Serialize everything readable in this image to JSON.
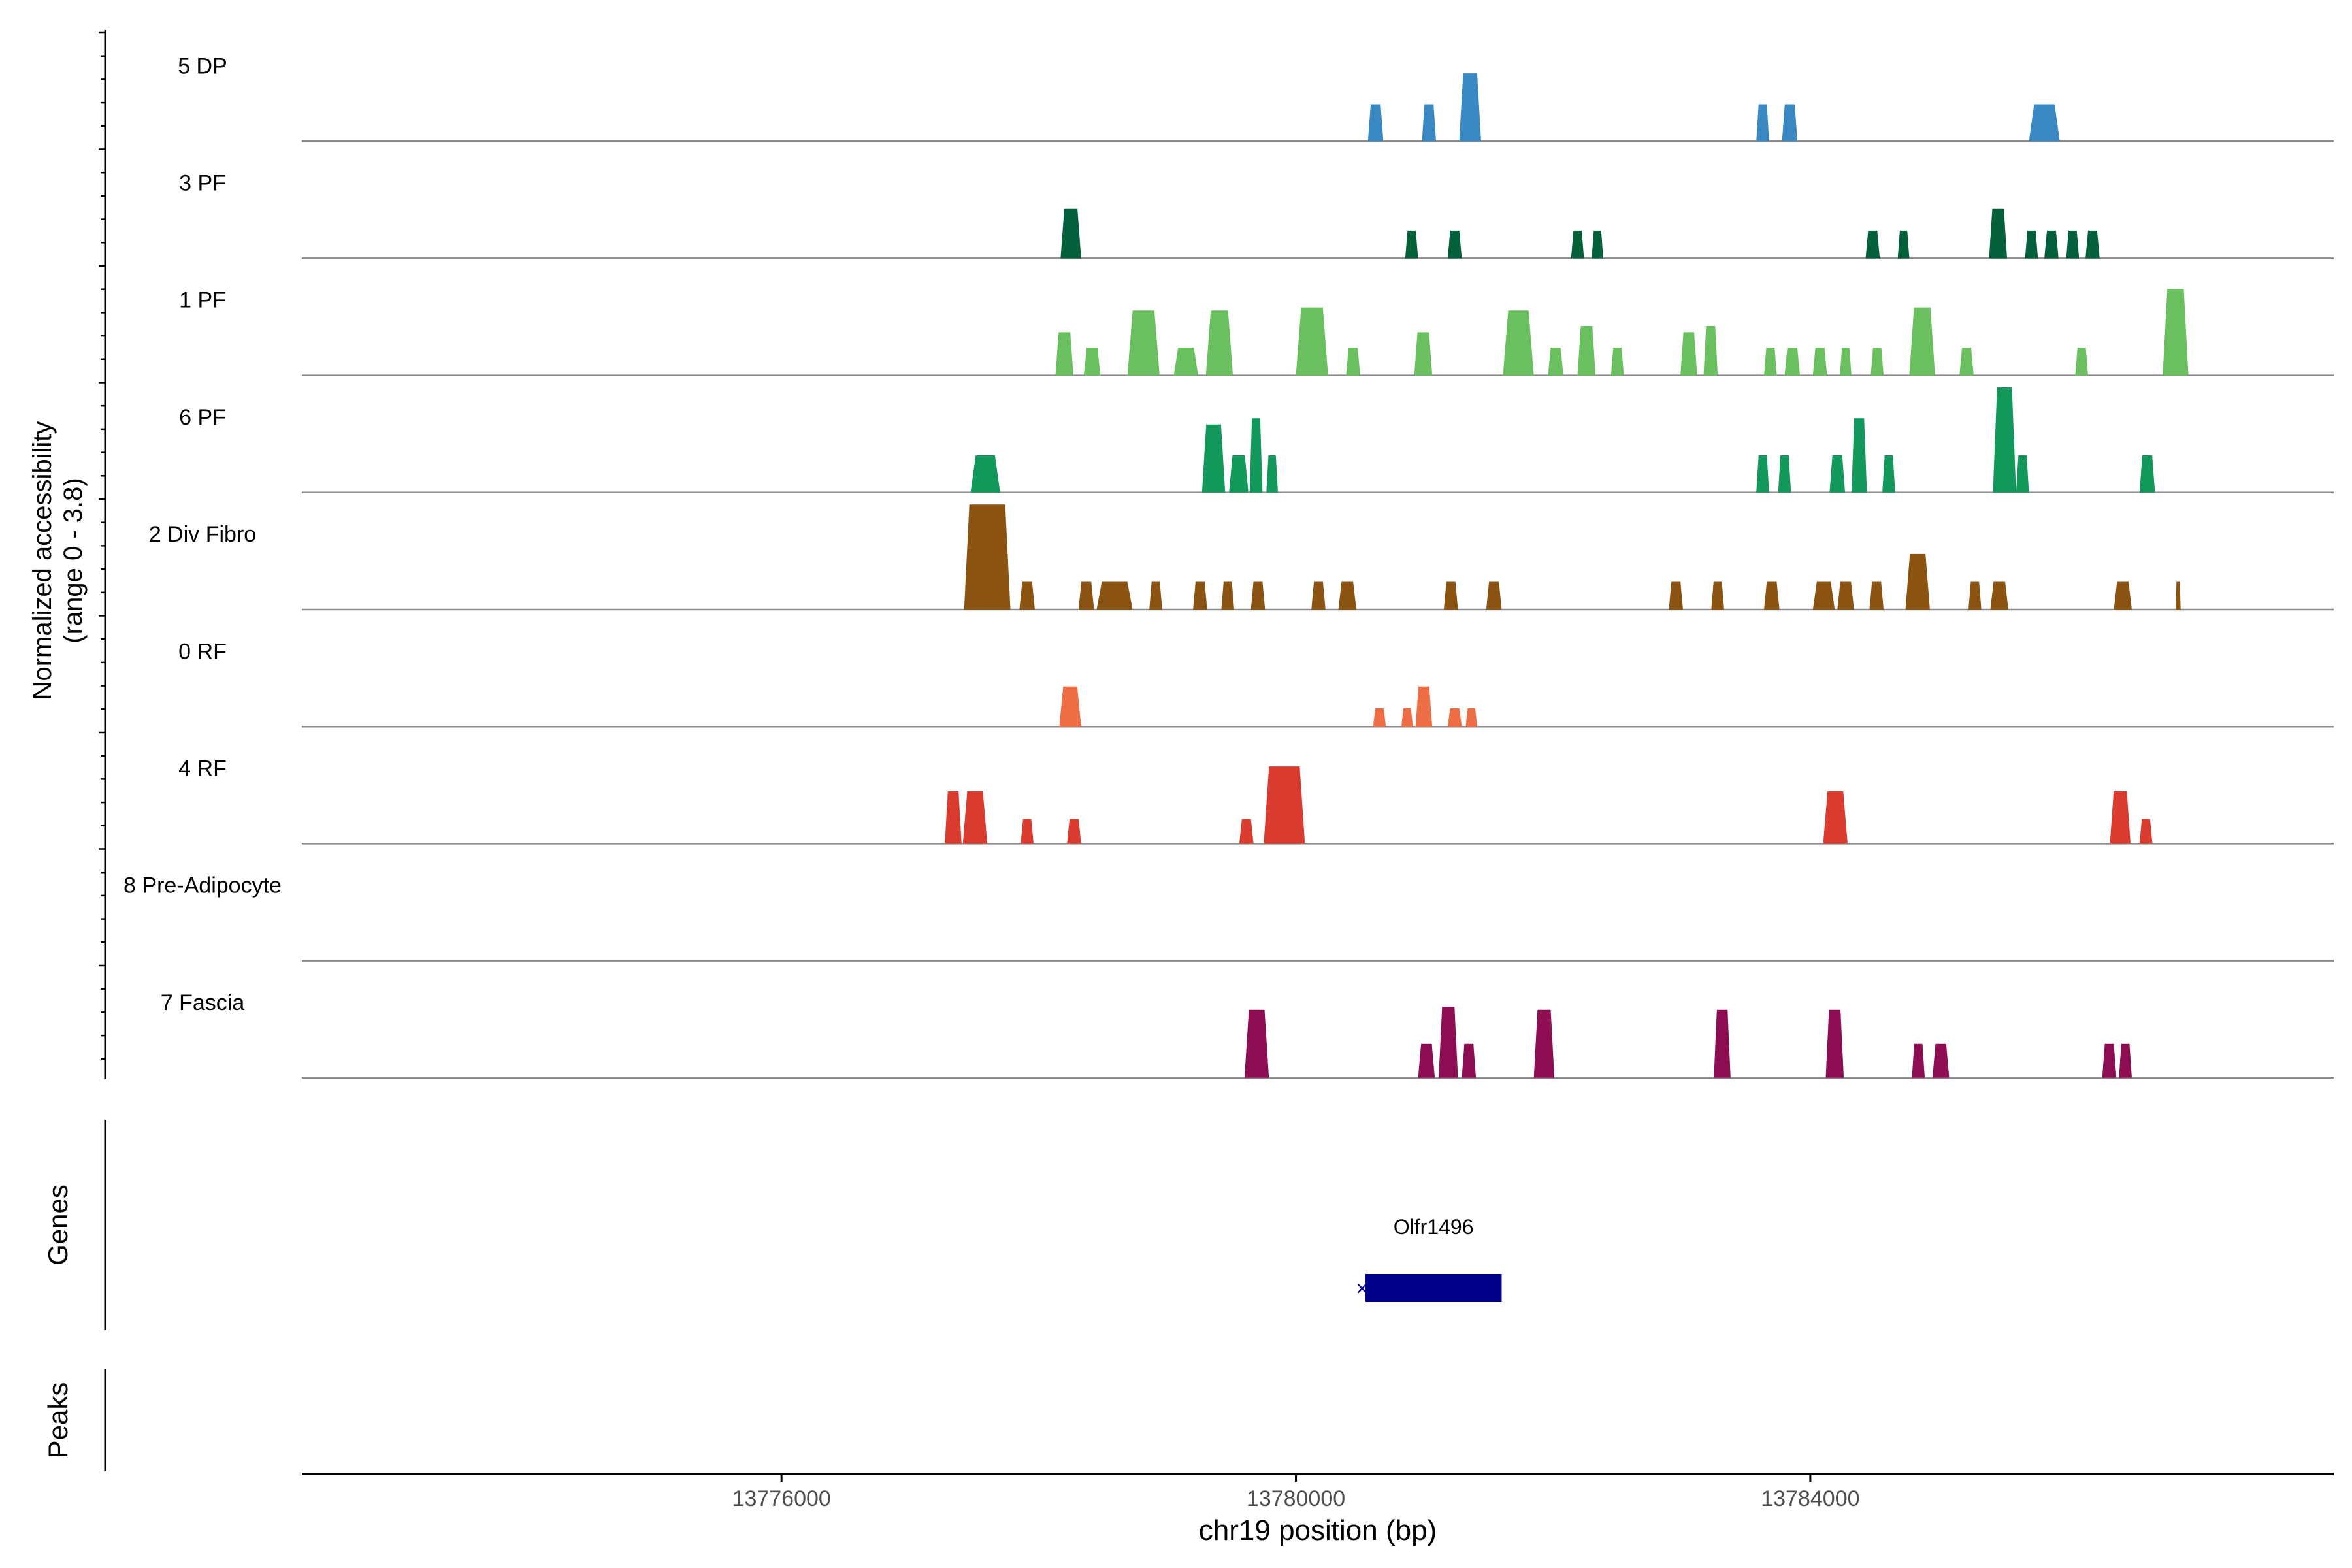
{
  "chart_data": {
    "type": "area",
    "title": "",
    "xlabel": "chr19 position (bp)",
    "ylabel": "Normalized accessibility\n(range 0 - 3.8)",
    "ylabel_lines": [
      "Normalized accessibility",
      "(range 0 - 3.8)"
    ],
    "ylim": [
      0,
      3.8
    ],
    "xlim": [
      13772270,
      13788070
    ],
    "x_ticks": [
      13776000,
      13780000,
      13784000
    ],
    "x_tick_labels": [
      "13776000",
      "13780000",
      "13784000"
    ],
    "tracks": [
      {
        "name": "5 DP",
        "color": "#3a88c2",
        "peaks": [
          [
            13780560,
            13780680,
            1.2
          ],
          [
            13780980,
            13781090,
            1.2
          ],
          [
            13781270,
            13781440,
            2.2
          ],
          [
            13783580,
            13783680,
            1.2
          ],
          [
            13783780,
            13783900,
            1.2
          ],
          [
            13785700,
            13785940,
            1.2
          ]
        ]
      },
      {
        "name": "3 PF",
        "color": "#04603a",
        "peaks": [
          [
            13778170,
            13778330,
            1.6
          ],
          [
            13780850,
            13780950,
            0.9
          ],
          [
            13781180,
            13781290,
            0.9
          ],
          [
            13782140,
            13782240,
            0.9
          ],
          [
            13782300,
            13782390,
            0.9
          ],
          [
            13784430,
            13784540,
            0.9
          ],
          [
            13784680,
            13784770,
            0.9
          ],
          [
            13785390,
            13785530,
            1.6
          ],
          [
            13785670,
            13785770,
            0.9
          ],
          [
            13785820,
            13785930,
            0.9
          ],
          [
            13785990,
            13786090,
            0.9
          ],
          [
            13786140,
            13786250,
            0.9
          ]
        ]
      },
      {
        "name": "1 PF",
        "color": "#6abf5f",
        "peaks": [
          [
            13778130,
            13778270,
            1.4
          ],
          [
            13778350,
            13778480,
            0.9
          ],
          [
            13778690,
            13778940,
            2.1
          ],
          [
            13779050,
            13779240,
            0.9
          ],
          [
            13779300,
            13779510,
            2.1
          ],
          [
            13780000,
            13780250,
            2.2
          ],
          [
            13780390,
            13780500,
            0.9
          ],
          [
            13780920,
            13781060,
            1.4
          ],
          [
            13781610,
            13781850,
            2.1
          ],
          [
            13781960,
            13782080,
            0.9
          ],
          [
            13782190,
            13782330,
            1.6
          ],
          [
            13782450,
            13782550,
            0.9
          ],
          [
            13782990,
            13783120,
            1.4
          ],
          [
            13783170,
            13783280,
            1.6
          ],
          [
            13783640,
            13783740,
            0.9
          ],
          [
            13783800,
            13783920,
            0.9
          ],
          [
            13784020,
            13784130,
            0.9
          ],
          [
            13784230,
            13784320,
            0.9
          ],
          [
            13784470,
            13784570,
            0.9
          ],
          [
            13784770,
            13784970,
            2.2
          ],
          [
            13785160,
            13785270,
            0.9
          ],
          [
            13786060,
            13786160,
            0.9
          ],
          [
            13786740,
            13786940,
            2.8
          ]
        ]
      },
      {
        "name": "6 PF",
        "color": "#12985a",
        "peaks": [
          [
            13777470,
            13777700,
            1.2
          ],
          [
            13779270,
            13779450,
            2.2
          ],
          [
            13779480,
            13779630,
            1.2
          ],
          [
            13779640,
            13779740,
            2.4
          ],
          [
            13779770,
            13779860,
            1.2
          ],
          [
            13783580,
            13783680,
            1.2
          ],
          [
            13783750,
            13783850,
            1.2
          ],
          [
            13784150,
            13784270,
            1.2
          ],
          [
            13784320,
            13784440,
            2.4
          ],
          [
            13784560,
            13784660,
            1.2
          ],
          [
            13785420,
            13785600,
            3.4
          ],
          [
            13785600,
            13785700,
            1.2
          ],
          [
            13786560,
            13786680,
            1.2
          ]
        ]
      },
      {
        "name": "2 Div Fibro",
        "color": "#8b5312",
        "peaks": [
          [
            13777420,
            13777780,
            3.4
          ],
          [
            13777850,
            13777970,
            0.9
          ],
          [
            13778310,
            13778430,
            0.9
          ],
          [
            13778450,
            13778730,
            0.9
          ],
          [
            13778860,
            13778960,
            0.9
          ],
          [
            13779200,
            13779310,
            0.9
          ],
          [
            13779420,
            13779520,
            0.9
          ],
          [
            13779650,
            13779760,
            0.9
          ],
          [
            13780120,
            13780230,
            0.9
          ],
          [
            13780330,
            13780470,
            0.9
          ],
          [
            13781150,
            13781260,
            0.9
          ],
          [
            13781480,
            13781600,
            0.9
          ],
          [
            13782900,
            13783010,
            0.9
          ],
          [
            13783230,
            13783330,
            0.9
          ],
          [
            13783640,
            13783760,
            0.9
          ],
          [
            13784020,
            13784190,
            0.9
          ],
          [
            13784210,
            13784340,
            0.9
          ],
          [
            13784460,
            13784570,
            0.9
          ],
          [
            13784740,
            13784930,
            1.8
          ],
          [
            13785230,
            13785330,
            0.9
          ],
          [
            13785400,
            13785540,
            0.9
          ],
          [
            13786360,
            13786500,
            0.9
          ],
          [
            13786840,
            13786880,
            0.9
          ]
        ]
      },
      {
        "name": "0 RF",
        "color": "#ed6e45",
        "peaks": [
          [
            13778160,
            13778330,
            1.3
          ],
          [
            13780600,
            13780700,
            0.6
          ],
          [
            13780820,
            13780910,
            0.6
          ],
          [
            13780930,
            13781060,
            1.3
          ],
          [
            13781180,
            13781290,
            0.6
          ],
          [
            13781320,
            13781410,
            0.6
          ]
        ]
      },
      {
        "name": "4 RF",
        "color": "#d93b2e",
        "peaks": [
          [
            13777270,
            13777400,
            1.7
          ],
          [
            13777410,
            13777600,
            1.7
          ],
          [
            13777860,
            13777960,
            0.8
          ],
          [
            13778220,
            13778330,
            0.8
          ],
          [
            13779560,
            13779670,
            0.8
          ],
          [
            13779750,
            13780070,
            2.5
          ],
          [
            13784100,
            13784290,
            1.7
          ],
          [
            13786330,
            13786490,
            1.7
          ],
          [
            13786560,
            13786660,
            0.8
          ]
        ]
      },
      {
        "name": "8 Pre-Adipocyte",
        "color": "#ff8a55",
        "peaks": []
      },
      {
        "name": "7 Fascia",
        "color": "#8c0d52",
        "peaks": [
          [
            13779600,
            13779790,
            2.2
          ],
          [
            13780950,
            13781080,
            1.1
          ],
          [
            13781110,
            13781260,
            2.3
          ],
          [
            13781290,
            13781400,
            1.1
          ],
          [
            13781850,
            13782010,
            2.2
          ],
          [
            13783250,
            13783380,
            2.2
          ],
          [
            13784120,
            13784260,
            2.2
          ],
          [
            13784790,
            13784890,
            1.1
          ],
          [
            13784950,
            13785080,
            1.1
          ],
          [
            13786270,
            13786380,
            1.1
          ],
          [
            13786400,
            13786500,
            1.1
          ]
        ]
      }
    ],
    "genes_label": "Genes",
    "peaks_label": "Peaks",
    "gene": {
      "name": "Olfr1496",
      "start": 13780540,
      "end": 13781600,
      "color": "#00008b"
    }
  }
}
